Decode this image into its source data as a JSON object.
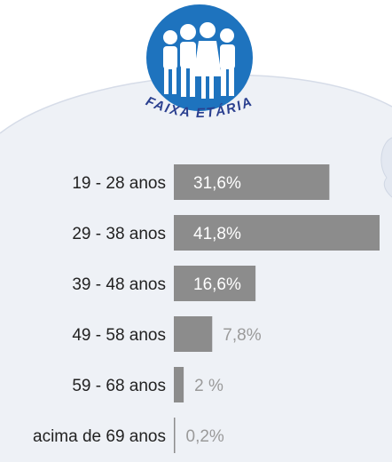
{
  "logo": {
    "text": "FAIXA ETÁRIA",
    "accent": "#1e73be",
    "text_color": "#2a3f8f"
  },
  "chart_data": {
    "type": "bar",
    "orientation": "horizontal",
    "title": "",
    "xlabel": "",
    "ylabel": "",
    "xlim": [
      0,
      41.8
    ],
    "grid": false,
    "bar_color": "#8c8c8c",
    "categories": [
      "19 - 28 anos",
      "29 - 38 anos",
      "39 - 48 anos",
      "49 - 58 anos",
      "59 - 68 anos",
      "acima de  69 anos"
    ],
    "values": [
      31.6,
      41.8,
      16.6,
      7.8,
      2,
      0.2
    ],
    "value_labels": [
      "31,6%",
      "41,8%",
      "16,6%",
      "7,8%",
      "2 %",
      "0,2%"
    ]
  }
}
